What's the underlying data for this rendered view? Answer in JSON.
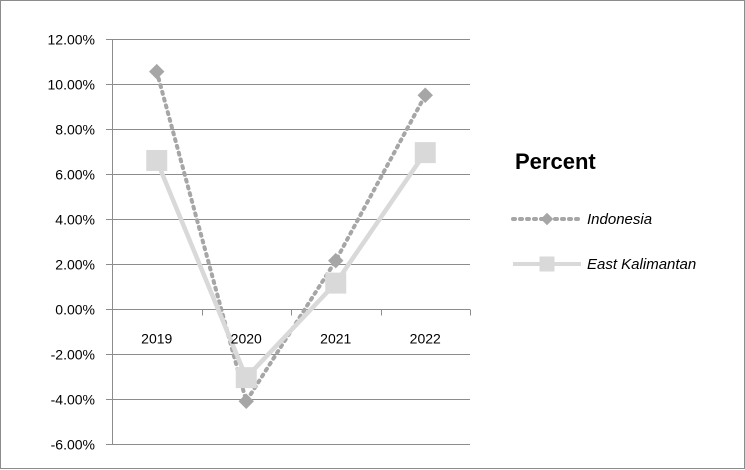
{
  "chart_data": {
    "type": "line",
    "title": "",
    "xlabel": "",
    "ylabel": "",
    "categories": [
      "2019",
      "2020",
      "2021",
      "2022"
    ],
    "y_tick_labels": [
      "12.00%",
      "10.00%",
      "8.00%",
      "6.00%",
      "4.00%",
      "2.00%",
      "0.00%",
      "-2.00%",
      "-4.00%",
      "-6.00%"
    ],
    "ylim": [
      -0.06,
      0.12
    ],
    "y_step": 0.02,
    "grid": true,
    "legend": {
      "title": "Percent",
      "placement": "right"
    },
    "series": [
      {
        "name": "Indonesia",
        "values": [
          0.1055,
          -0.041,
          0.0215,
          0.095
        ],
        "color": "#a6a6a6",
        "style": "dotted",
        "marker": "diamond"
      },
      {
        "name": "East Kalimantan",
        "values": [
          0.066,
          -0.0305,
          0.0115,
          0.0695
        ],
        "color": "#d9d9d9",
        "style": "solid",
        "marker": "square"
      }
    ]
  }
}
